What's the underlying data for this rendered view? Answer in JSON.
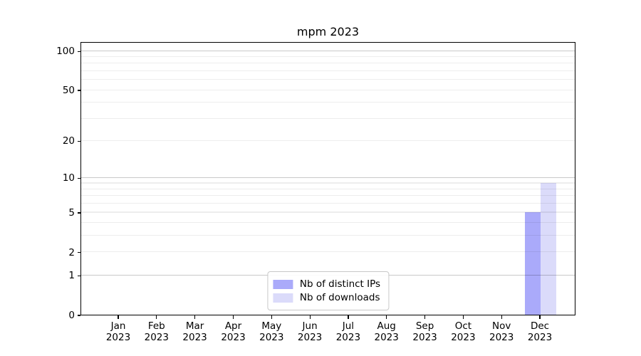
{
  "figure": {
    "background": "#ffffff"
  },
  "chart_data": {
    "type": "bar",
    "title": "mpm 2023",
    "categories": [
      "Jan",
      "Feb",
      "Mar",
      "Apr",
      "May",
      "Jun",
      "Jul",
      "Aug",
      "Sep",
      "Oct",
      "Nov",
      "Dec"
    ],
    "xtick_year": "2023",
    "series": [
      {
        "name": "Nb of distinct IPs",
        "color": "#aaaafa",
        "values": [
          0,
          0,
          0,
          0,
          0,
          0,
          0,
          0,
          0,
          0,
          0,
          5
        ]
      },
      {
        "name": "Nb of downloads",
        "color": "#dbdbfa",
        "values": [
          0,
          0,
          0,
          0,
          0,
          0,
          0,
          0,
          0,
          0,
          0,
          9
        ]
      }
    ],
    "xlabel": "",
    "ylabel": "",
    "yscale": "log1p",
    "ylim": [
      0,
      117
    ],
    "yticks": [
      0,
      1,
      2,
      5,
      10,
      20,
      50,
      100
    ],
    "grid": {
      "on": true,
      "drawn_above_bars": true,
      "major_values": [
        1,
        10,
        100
      ],
      "minor_values": [
        2,
        3,
        4,
        5,
        6,
        7,
        8,
        9,
        20,
        30,
        40,
        50,
        60,
        70,
        80,
        90
      ],
      "major_color": "rgba(0,0,0,0.21)",
      "minor_color": "rgba(0,0,0,0.07)"
    },
    "legend": {
      "position": "lower center"
    }
  }
}
